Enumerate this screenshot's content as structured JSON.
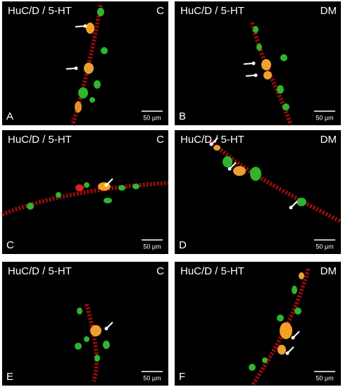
{
  "panels": [
    {
      "letter": "A",
      "stain": "HuC/D / 5-HT",
      "condition": "C",
      "scale": "50 µm"
    },
    {
      "letter": "B",
      "stain": "HuC/D / 5-HT",
      "condition": "DM",
      "scale": "50 µm"
    },
    {
      "letter": "C",
      "stain": "HuC/D / 5-HT",
      "condition": "C",
      "scale": "50 µm"
    },
    {
      "letter": "D",
      "stain": "HuC/D / 5-HT",
      "condition": "DM",
      "scale": "50 µm"
    },
    {
      "letter": "E",
      "stain": "HuC/D / 5-HT",
      "condition": "C",
      "scale": "50 µm"
    },
    {
      "letter": "F",
      "stain": "HuC/D / 5-HT",
      "condition": "DM",
      "scale": "50 µm"
    }
  ]
}
